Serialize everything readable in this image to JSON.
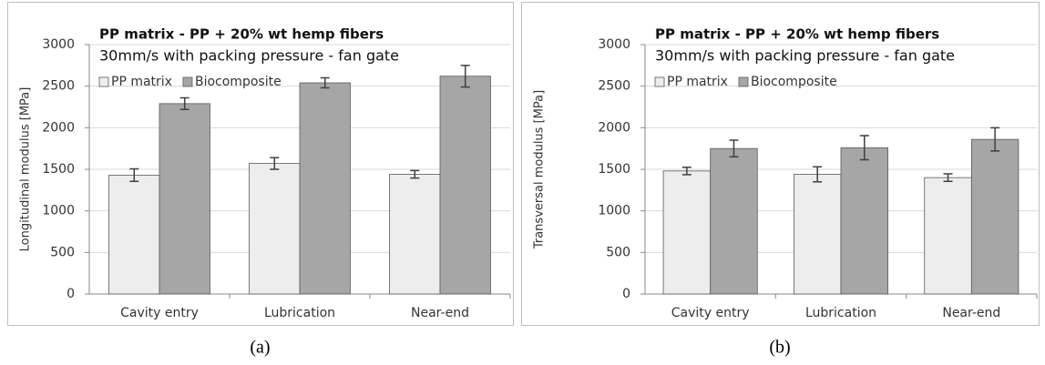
{
  "chart_data": [
    {
      "type": "bar",
      "title": "PP matrix - PP + 20% wt hemp fibers",
      "subtitle": "30mm/s with packing pressure - fan gate",
      "y_label": "Longitudinal modulus [MPa]",
      "panel_label": "(a)",
      "categories": [
        "Cavity entry",
        "Lubrication",
        "Near-end"
      ],
      "series": [
        {
          "name": "PP matrix",
          "color": "#ededed",
          "values": [
            1430,
            1570,
            1440
          ],
          "errors": [
            75,
            70,
            45
          ]
        },
        {
          "name": "Biocomposite",
          "color": "#a6a6a6",
          "values": [
            2290,
            2540,
            2620
          ],
          "errors": [
            70,
            60,
            130
          ]
        }
      ],
      "ylim": [
        0,
        3000
      ],
      "yticks": [
        0,
        500,
        1000,
        1500,
        2000,
        2500,
        3000
      ],
      "grid": true,
      "legend": "top-left"
    },
    {
      "type": "bar",
      "title": "PP matrix - PP + 20% wt hemp fibers",
      "subtitle": "30mm/s with packing pressure - fan gate",
      "y_label": "Transversal modulus [MPa]",
      "panel_label": "(b)",
      "categories": [
        "Cavity entry",
        "Lubrication",
        "Near-end"
      ],
      "series": [
        {
          "name": "PP matrix",
          "color": "#ededed",
          "values": [
            1480,
            1440,
            1400
          ],
          "errors": [
            45,
            90,
            45
          ]
        },
        {
          "name": "Biocomposite",
          "color": "#a6a6a6",
          "values": [
            1750,
            1760,
            1860
          ],
          "errors": [
            100,
            145,
            140
          ]
        }
      ],
      "ylim": [
        0,
        3000
      ],
      "yticks": [
        0,
        500,
        1000,
        1500,
        2000,
        2500,
        3000
      ],
      "grid": true,
      "legend": "top-left"
    }
  ]
}
